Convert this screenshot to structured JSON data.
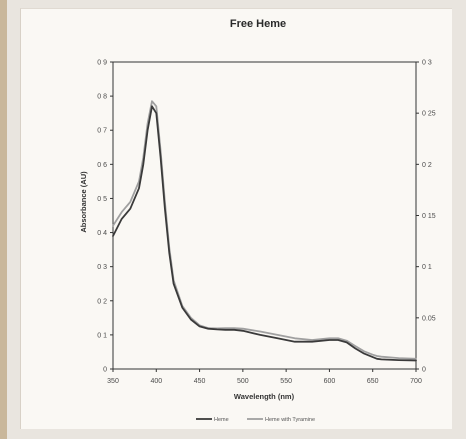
{
  "chart_data": {
    "type": "line",
    "title": "Free Heme",
    "xlabel": "Wavelength (nm)",
    "ylabel": "Absorbance (AU)",
    "xlim": [
      350,
      700
    ],
    "ylim": [
      0,
      0.9
    ],
    "y2lim": [
      0,
      0.3
    ],
    "x_ticks": [
      "350",
      "400",
      "450",
      "500",
      "550",
      "600",
      "650",
      "700"
    ],
    "y_ticks": [
      "0",
      "0 1",
      "0 2",
      "0 3",
      "0 4",
      "0 5",
      "0 6",
      "0 7",
      "0 8",
      "0 9"
    ],
    "y2_ticks": [
      "0",
      "0.05",
      "0 1",
      "0 15",
      "0 2",
      "0 25",
      "0 3"
    ],
    "grid": false,
    "legend_position": "bottom",
    "series": [
      {
        "name": "Heme",
        "color": "#3a3a3a",
        "x": [
          350,
          360,
          370,
          380,
          385,
          390,
          395,
          400,
          405,
          410,
          415,
          420,
          430,
          440,
          450,
          460,
          470,
          480,
          490,
          500,
          520,
          540,
          560,
          580,
          600,
          610,
          620,
          630,
          640,
          650,
          655,
          660,
          680,
          700
        ],
        "y": [
          0.39,
          0.44,
          0.47,
          0.53,
          0.6,
          0.7,
          0.77,
          0.75,
          0.62,
          0.47,
          0.34,
          0.25,
          0.18,
          0.145,
          0.125,
          0.118,
          0.116,
          0.115,
          0.115,
          0.112,
          0.1,
          0.09,
          0.08,
          0.08,
          0.085,
          0.085,
          0.078,
          0.06,
          0.045,
          0.035,
          0.03,
          0.028,
          0.026,
          0.025
        ]
      },
      {
        "name": "Heme with Tyramine",
        "color": "#a0a0a0",
        "x": [
          350,
          360,
          370,
          380,
          385,
          390,
          395,
          400,
          405,
          410,
          415,
          420,
          430,
          440,
          450,
          460,
          470,
          480,
          490,
          500,
          520,
          540,
          560,
          580,
          600,
          610,
          620,
          630,
          640,
          650,
          655,
          660,
          680,
          700
        ],
        "y": [
          0.42,
          0.46,
          0.49,
          0.55,
          0.62,
          0.72,
          0.785,
          0.77,
          0.64,
          0.49,
          0.355,
          0.26,
          0.185,
          0.15,
          0.128,
          0.12,
          0.119,
          0.12,
          0.12,
          0.118,
          0.11,
          0.1,
          0.09,
          0.085,
          0.09,
          0.09,
          0.083,
          0.067,
          0.052,
          0.042,
          0.038,
          0.036,
          0.032,
          0.03
        ]
      }
    ]
  }
}
